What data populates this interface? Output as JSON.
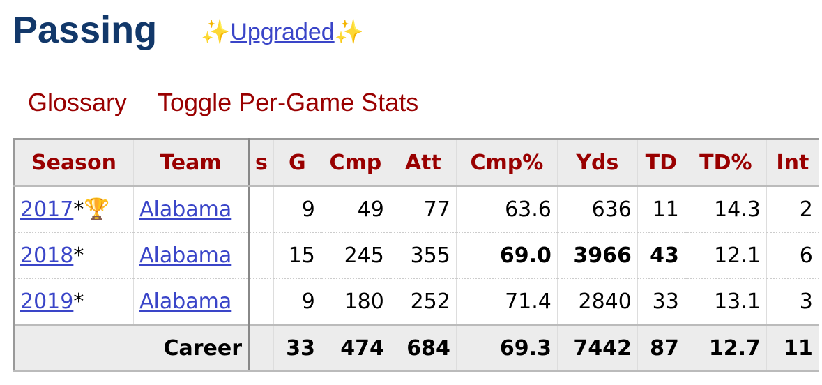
{
  "header": {
    "title": "Passing",
    "sparkle_left": "✨",
    "upgraded_link": "Upgraded",
    "sparkle_right": "✨"
  },
  "links": [
    "Glossary",
    "Toggle Per-Game Stats"
  ],
  "table": {
    "headers": [
      "Season",
      "Team",
      "s",
      "G",
      "Cmp",
      "Att",
      "Cmp%",
      "Yds",
      "TD",
      "TD%",
      "Int"
    ],
    "rows": [
      {
        "season": "2017",
        "mark": "*",
        "award": "🏆",
        "team": "Alabama",
        "stats": [
          9,
          49,
          77,
          63.6,
          636,
          11,
          14.3,
          2
        ],
        "bold": []
      },
      {
        "season": "2018",
        "mark": "*",
        "team": "Alabama",
        "stats": [
          15,
          245,
          355,
          "69.0",
          3966,
          43,
          12.1,
          6
        ],
        "bold": [
          3,
          4,
          5
        ]
      },
      {
        "season": "2019",
        "mark": "*",
        "team": "Alabama",
        "stats": [
          9,
          180,
          252,
          71.4,
          2840,
          33,
          13.1,
          3
        ],
        "bold": []
      }
    ],
    "footer": {
      "label": "Career",
      "stats": [
        33,
        474,
        684,
        69.3,
        7442,
        87,
        12.7,
        11
      ]
    }
  }
}
